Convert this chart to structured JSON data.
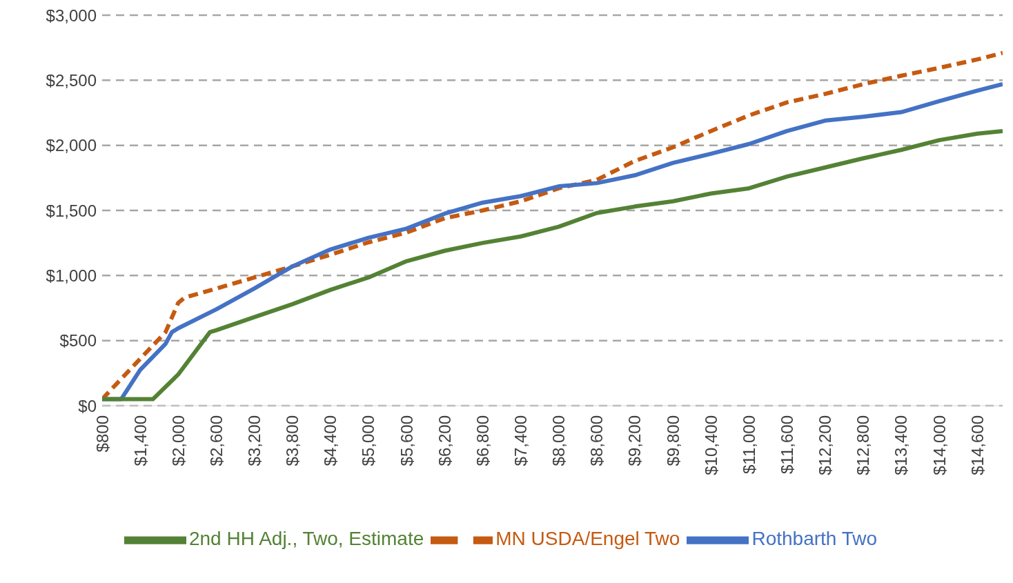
{
  "chart_data": {
    "type": "line",
    "xlim": [
      800,
      15000
    ],
    "ylim": [
      0,
      3000
    ],
    "xticks": [
      {
        "value": 800,
        "label": "$800"
      },
      {
        "value": 1400,
        "label": "$1,400"
      },
      {
        "value": 2000,
        "label": "$2,000"
      },
      {
        "value": 2600,
        "label": "$2,600"
      },
      {
        "value": 3200,
        "label": "$3,200"
      },
      {
        "value": 3800,
        "label": "$3,800"
      },
      {
        "value": 4400,
        "label": "$4,400"
      },
      {
        "value": 5000,
        "label": "$5,000"
      },
      {
        "value": 5600,
        "label": "$5,600"
      },
      {
        "value": 6200,
        "label": "$6,200"
      },
      {
        "value": 6800,
        "label": "$6,800"
      },
      {
        "value": 7400,
        "label": "$7,400"
      },
      {
        "value": 8000,
        "label": "$8,000"
      },
      {
        "value": 8600,
        "label": "$8,600"
      },
      {
        "value": 9200,
        "label": "$9,200"
      },
      {
        "value": 9800,
        "label": "$9,800"
      },
      {
        "value": 10400,
        "label": "$10,400"
      },
      {
        "value": 11000,
        "label": "$11,000"
      },
      {
        "value": 11600,
        "label": "$11,600"
      },
      {
        "value": 12200,
        "label": "$12,200"
      },
      {
        "value": 12800,
        "label": "$12,800"
      },
      {
        "value": 13400,
        "label": "$13,400"
      },
      {
        "value": 14000,
        "label": "$14,000"
      },
      {
        "value": 14600,
        "label": "$14,600"
      }
    ],
    "yticks": [
      {
        "value": 0,
        "label": "$0"
      },
      {
        "value": 500,
        "label": "$500"
      },
      {
        "value": 1000,
        "label": "$1,000"
      },
      {
        "value": 1500,
        "label": "$1,500"
      },
      {
        "value": 2000,
        "label": "$2,000"
      },
      {
        "value": 2500,
        "label": "$2,500"
      },
      {
        "value": 3000,
        "label": "$3,000"
      }
    ],
    "grid": "y",
    "legend": "bottom",
    "marker": "none",
    "series": [
      {
        "name": "MN USDA/Engel Two",
        "color": "#c55a11",
        "line_style": "dashed",
        "x": [
          800,
          1400,
          1800,
          2000,
          2100,
          2600,
          3200,
          3800,
          4400,
          5000,
          5600,
          6200,
          6800,
          7400,
          8000,
          8600,
          9200,
          9800,
          10400,
          11000,
          11600,
          12200,
          12800,
          13400,
          14000,
          14600,
          15000
        ],
        "values": [
          50,
          360,
          565,
          790,
          830,
          900,
          985,
          1070,
          1160,
          1255,
          1330,
          1440,
          1500,
          1570,
          1670,
          1735,
          1880,
          1985,
          2110,
          2230,
          2330,
          2395,
          2470,
          2535,
          2595,
          2660,
          2710
        ]
      },
      {
        "name": "Rothbarth Two",
        "color": "#4472c4",
        "line_style": "solid",
        "x": [
          800,
          1100,
          1400,
          1800,
          1900,
          2000,
          2600,
          3200,
          3800,
          4400,
          5000,
          5600,
          6200,
          6800,
          7400,
          8000,
          8600,
          9200,
          9800,
          10400,
          11000,
          11600,
          12200,
          12800,
          13400,
          14000,
          14600,
          15000
        ],
        "values": [
          50,
          50,
          275,
          475,
          565,
          595,
          740,
          900,
          1070,
          1200,
          1290,
          1360,
          1475,
          1560,
          1610,
          1685,
          1710,
          1770,
          1865,
          1935,
          2010,
          2110,
          2190,
          2220,
          2255,
          2340,
          2420,
          2470
        ]
      },
      {
        "name": "2nd HH Adj., Two, Estimate",
        "color": "#548235",
        "line_style": "solid",
        "x": [
          800,
          1600,
          2000,
          2500,
          2600,
          3200,
          3800,
          4400,
          5000,
          5600,
          6200,
          6800,
          7400,
          8000,
          8600,
          9200,
          9800,
          10400,
          11000,
          11600,
          12200,
          12800,
          13400,
          14000,
          14600,
          15000
        ],
        "values": [
          50,
          50,
          240,
          565,
          580,
          680,
          780,
          890,
          985,
          1110,
          1190,
          1250,
          1300,
          1375,
          1480,
          1530,
          1570,
          1630,
          1670,
          1760,
          1830,
          1900,
          1965,
          2040,
          2090,
          2110
        ]
      }
    ]
  }
}
